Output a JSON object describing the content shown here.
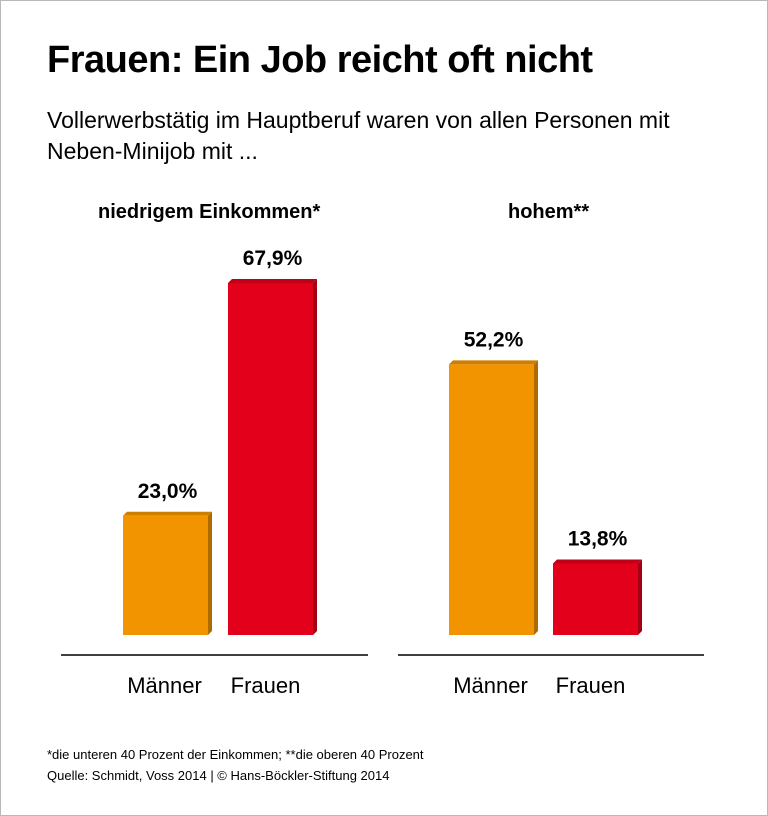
{
  "title": "Frauen: Ein Job reicht oft nicht",
  "subtitle": "Vollerwerbstätig im Hauptberuf waren von allen Personen mit Neben-Minijob mit ...",
  "chart_data": {
    "type": "bar",
    "title": "Frauen: Ein Job reicht oft nicht",
    "subtitle": "Vollerwerbstätig im Hauptberuf waren von allen Personen mit Neben-Minijob mit ...",
    "xlabel": "",
    "ylabel": "",
    "ylim": [
      0,
      70
    ],
    "grid": false,
    "unit": "%",
    "groups": [
      {
        "name": "niedrigem Einkommen*",
        "categories": [
          "Männer",
          "Frauen"
        ],
        "values": [
          23.0,
          67.9
        ],
        "labels": [
          "23,0%",
          "67,9%"
        ]
      },
      {
        "name": "hohem**",
        "categories": [
          "Männer",
          "Frauen"
        ],
        "values": [
          52.2,
          13.8
        ],
        "labels": [
          "52,2%",
          "13,8%"
        ]
      }
    ],
    "colors": {
      "Männer": "#f29400",
      "Frauen": "#e2001a"
    }
  },
  "footnote": "*die unteren 40 Prozent der Einkommen; **die oberen 40 Prozent",
  "source": "Quelle: Schmidt, Voss 2014 | © Hans-Böckler-Stiftung 2014"
}
